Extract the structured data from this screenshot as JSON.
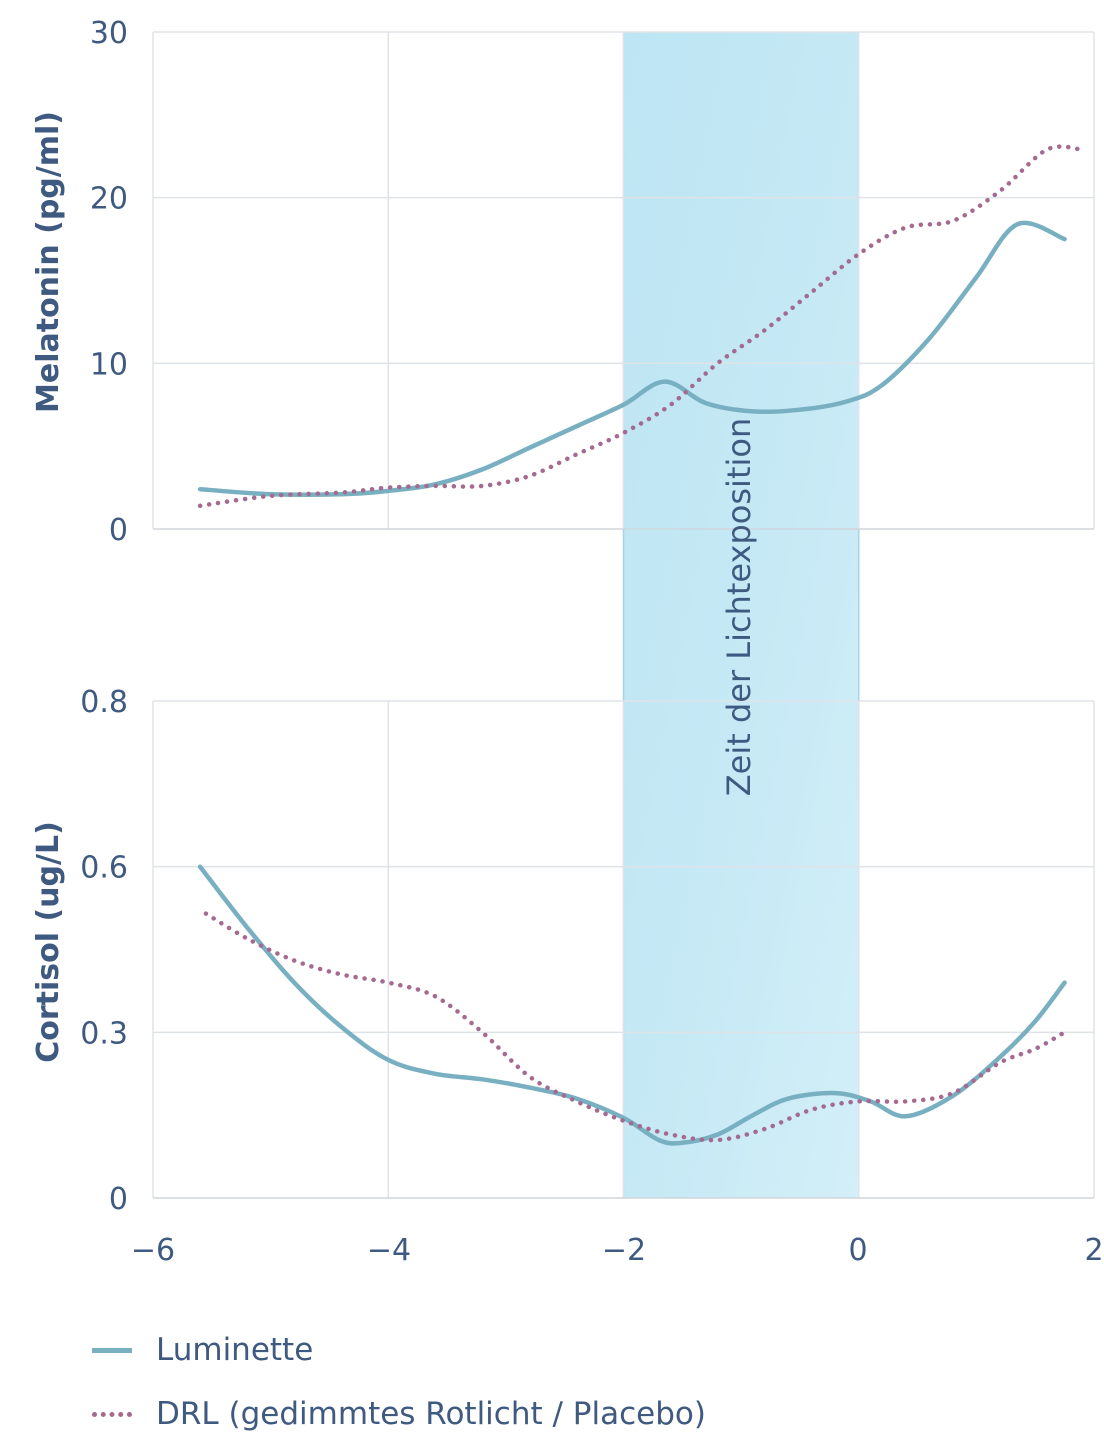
{
  "colors": {
    "luminette": "#78b0c2",
    "drl": "#a46a90",
    "band": "#bfe6f3",
    "grid": "#dfe3e8",
    "text": "#3f5a80"
  },
  "band_label": "Zeit der Lichtexposition",
  "legend": [
    {
      "label": "Luminette",
      "style": "solid"
    },
    {
      "label": "DRL (gedimmtes Rotlicht / Placebo)",
      "style": "dotted"
    }
  ],
  "chart_data": [
    {
      "type": "line",
      "ylabel": "Melatonin (pg/ml)",
      "xlim": [
        -6,
        2
      ],
      "ylim": [
        0,
        30
      ],
      "yticks": [
        "0",
        "10",
        "20",
        "30"
      ],
      "grid": true,
      "shaded_region": {
        "x_start": -2,
        "x_end": 0,
        "label": "Zeit der Lichtexposition"
      },
      "series": [
        {
          "name": "Luminette",
          "style": "solid",
          "x": [
            -5.6,
            -5.0,
            -4.4,
            -4.0,
            -3.6,
            -3.2,
            -2.8,
            -2.4,
            -2.0,
            -1.65,
            -1.3,
            -0.9,
            -0.5,
            -0.1,
            0.2,
            0.6,
            1.0,
            1.35,
            1.75
          ],
          "y": [
            2.4,
            2.1,
            2.1,
            2.3,
            2.7,
            3.6,
            4.9,
            6.2,
            7.5,
            8.9,
            7.6,
            7.1,
            7.2,
            7.7,
            8.7,
            11.5,
            15.2,
            18.4,
            17.5
          ]
        },
        {
          "name": "DRL (gedimmtes Rotlicht / Placebo)",
          "style": "dotted",
          "x": [
            -5.6,
            -5.0,
            -4.4,
            -4.0,
            -3.6,
            -3.2,
            -2.8,
            -2.4,
            -2.0,
            -1.6,
            -1.2,
            -0.8,
            -0.4,
            0.0,
            0.4,
            0.8,
            1.2,
            1.6,
            1.9
          ],
          "y": [
            1.4,
            2.0,
            2.2,
            2.5,
            2.6,
            2.6,
            3.2,
            4.5,
            5.8,
            7.5,
            10.0,
            12.0,
            14.3,
            16.6,
            18.2,
            18.6,
            20.4,
            22.9,
            22.9
          ]
        }
      ]
    },
    {
      "type": "line",
      "ylabel": "Cortisol (ug/L)",
      "xlim": [
        -6,
        2
      ],
      "ylim": [
        0,
        0.9
      ],
      "yticks": [
        "0",
        "0.3",
        "0.6",
        "0.8"
      ],
      "xticks": [
        "-6",
        "-4",
        "-2",
        "0",
        "2"
      ],
      "grid": true,
      "shaded_region": {
        "x_start": -2,
        "x_end": 0
      },
      "series": [
        {
          "name": "Luminette",
          "style": "solid",
          "x": [
            -5.6,
            -5.2,
            -4.8,
            -4.4,
            -4.0,
            -3.6,
            -3.2,
            -2.8,
            -2.4,
            -2.0,
            -1.7,
            -1.5,
            -1.2,
            -0.9,
            -0.6,
            -0.2,
            0.1,
            0.4,
            0.8,
            1.2,
            1.5,
            1.75
          ],
          "y": [
            0.6,
            0.49,
            0.39,
            0.31,
            0.25,
            0.225,
            0.215,
            0.2,
            0.18,
            0.145,
            0.105,
            0.1,
            0.115,
            0.15,
            0.18,
            0.19,
            0.175,
            0.148,
            0.185,
            0.255,
            0.32,
            0.39
          ]
        },
        {
          "name": "DRL (gedimmtes Rotlicht / Placebo)",
          "style": "dotted",
          "x": [
            -5.55,
            -5.2,
            -4.8,
            -4.4,
            -4.0,
            -3.6,
            -3.2,
            -2.8,
            -2.4,
            -2.0,
            -1.6,
            -1.2,
            -0.8,
            -0.4,
            0.0,
            0.4,
            0.8,
            1.2,
            1.5,
            1.75
          ],
          "y": [
            0.515,
            0.47,
            0.43,
            0.405,
            0.39,
            0.365,
            0.3,
            0.22,
            0.175,
            0.14,
            0.115,
            0.105,
            0.125,
            0.16,
            0.175,
            0.175,
            0.19,
            0.245,
            0.27,
            0.3
          ]
        }
      ]
    }
  ]
}
